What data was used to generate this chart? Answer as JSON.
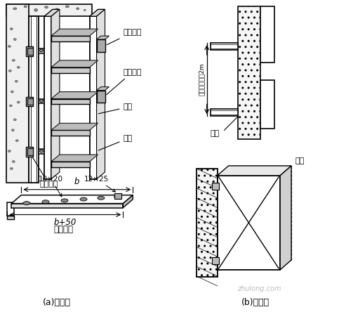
{
  "bg_color": "#ffffff",
  "line_color": "#000000",
  "labels": {
    "fixed_plate": "固定压板",
    "connect_bolt": "连接螺栓",
    "bridge": "桥架",
    "bracket": "托臂",
    "expand_bolt": "膨胀螺栓",
    "dim1": "10×20",
    "dim2": "12×25",
    "b_label": "b",
    "b50_label": "b+50",
    "flat_steel": "扁钢托臂",
    "method_a": "(a)方式一",
    "method_b": "(b)方式二",
    "channel_steel1": "槽钢",
    "channel_steel2": "槽钢",
    "spacing_note": "固定间距小于2m",
    "watermark": "zhulong.com"
  }
}
